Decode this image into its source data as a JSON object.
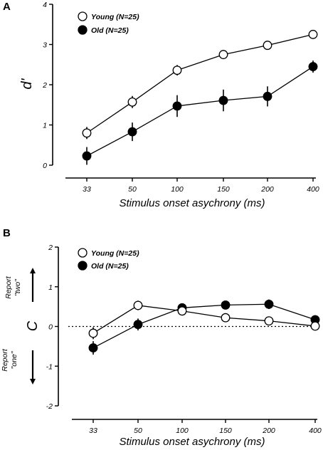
{
  "chart_data": [
    {
      "panel_label": "A",
      "type": "line",
      "ylabel": "d'",
      "xlabel": "Stimulus onset asychrony (ms)",
      "categories": [
        "33",
        "50",
        "100",
        "150",
        "200",
        "400"
      ],
      "yticks": [
        "0",
        "1",
        "2",
        "3",
        "4"
      ],
      "ylim": [
        0,
        4
      ],
      "legend_position": "top-left",
      "series": [
        {
          "name": "Young (N=25)",
          "marker": "open-circle",
          "values": [
            0.8,
            1.57,
            2.36,
            2.75,
            2.98,
            3.25
          ],
          "errors": [
            0.15,
            0.15,
            0.13,
            0.1,
            0.08,
            0.08
          ]
        },
        {
          "name": "Old (N=25)",
          "marker": "filled-circle",
          "values": [
            0.23,
            0.83,
            1.47,
            1.61,
            1.71,
            2.45
          ],
          "errors": [
            0.22,
            0.23,
            0.27,
            0.27,
            0.25,
            0.15
          ]
        }
      ]
    },
    {
      "panel_label": "B",
      "type": "line",
      "ylabel": "C",
      "xlabel": "Stimulus onset asychrony (ms)",
      "categories": [
        "33",
        "50",
        "100",
        "150",
        "200",
        "400"
      ],
      "yticks": [
        "-2",
        "-1",
        "0",
        "1",
        "2"
      ],
      "ylim": [
        -2,
        2
      ],
      "reference_line": 0,
      "legend_position": "top-center",
      "annotations": {
        "up_line1": "Report",
        "up_line2": "\"two\"",
        "down_line1": "Report",
        "down_line2": "\"one\""
      },
      "series": [
        {
          "name": "Young (N=25)",
          "marker": "open-circle",
          "values": [
            -0.17,
            0.53,
            0.39,
            0.22,
            0.14,
            0.01
          ],
          "errors": [
            0.15,
            0.12,
            0.08,
            0.07,
            0.06,
            0.05
          ]
        },
        {
          "name": "Old (N=25)",
          "marker": "filled-circle",
          "values": [
            -0.54,
            0.05,
            0.47,
            0.54,
            0.56,
            0.17
          ],
          "errors": [
            0.17,
            0.15,
            0.1,
            0.1,
            0.12,
            0.06
          ]
        }
      ]
    }
  ]
}
